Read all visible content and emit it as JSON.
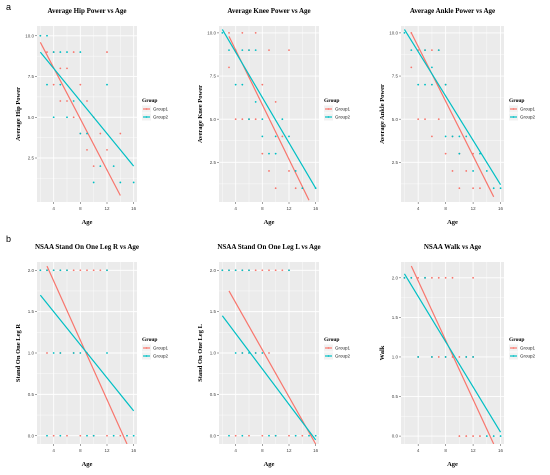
{
  "panel_labels": [
    "a",
    "b"
  ],
  "colors": {
    "group1": "#F8766D",
    "group2": "#00BFC4",
    "panel_bg": "#EBEBEB",
    "grid": "#FFFFFF"
  },
  "chart_data": [
    {
      "type": "scatter",
      "title": "Average Hip Power vs Age",
      "xlabel": "Age",
      "ylabel": "Average Hip Power",
      "xlim": [
        1.5,
        16.5
      ],
      "ylim": [
        -0.2,
        10.6
      ],
      "xticks": [
        4,
        8,
        12,
        16
      ],
      "xtick_labels": [
        "4",
        "8",
        "12",
        "16"
      ],
      "yticks": [
        2.5,
        5.0,
        7.5,
        10.0
      ],
      "ytick_labels": [
        "2.5",
        "5.0",
        "7.5",
        "10.0"
      ],
      "grid": true,
      "legend": {
        "title": "Group",
        "position": "right",
        "entries": [
          "Group1",
          "Group2"
        ]
      },
      "series": [
        {
          "name": "Group1",
          "color": "#F8766D",
          "x": [
            2,
            3,
            4,
            4,
            5,
            5,
            6,
            6,
            7,
            7,
            8,
            8,
            9,
            9,
            10,
            10,
            11,
            12,
            12,
            14
          ],
          "y": [
            10,
            9,
            9,
            7,
            8,
            6,
            8,
            6,
            9,
            5,
            7,
            4,
            6,
            3,
            5,
            2,
            4,
            3,
            9,
            4
          ],
          "fit": [
            [
              2,
              9.6
            ],
            [
              14,
              0.2
            ]
          ]
        },
        {
          "name": "Group2",
          "color": "#00BFC4",
          "x": [
            2,
            3,
            3,
            4,
            4,
            5,
            5,
            6,
            6,
            7,
            8,
            8,
            9,
            10,
            11,
            12,
            13,
            14,
            16
          ],
          "y": [
            10,
            10,
            7,
            9,
            5,
            9,
            7,
            9,
            5,
            6,
            9,
            4,
            4,
            1,
            2,
            7,
            2,
            1,
            1
          ],
          "fit": [
            [
              2,
              9.0
            ],
            [
              16,
              2.0
            ]
          ]
        }
      ]
    },
    {
      "type": "scatter",
      "title": "Average Knee Power vs Age",
      "xlabel": "Age",
      "ylabel": "Average Knee Power",
      "xlim": [
        1.5,
        16.5
      ],
      "ylim": [
        0.2,
        10.4
      ],
      "xticks": [
        4,
        8,
        12,
        16
      ],
      "xtick_labels": [
        "4",
        "8",
        "12",
        "16"
      ],
      "yticks": [
        2.5,
        5.0,
        7.5,
        10.0
      ],
      "ytick_labels": [
        "2.5",
        "5.0",
        "7.5",
        "10.0"
      ],
      "grid": true,
      "legend": {
        "title": "Group",
        "position": "right",
        "entries": [
          "Group1",
          "Group2"
        ]
      },
      "series": [
        {
          "name": "Group1",
          "color": "#F8766D",
          "x": [
            3,
            3,
            4,
            4,
            5,
            5,
            6,
            6,
            7,
            7,
            8,
            8,
            9,
            9,
            10,
            10,
            11,
            12,
            12,
            13
          ],
          "y": [
            10,
            8,
            9,
            5,
            10,
            5,
            9,
            5,
            10,
            5,
            7,
            3,
            9,
            2,
            6,
            1,
            4,
            2,
            9,
            1
          ],
          "fit": [
            [
              3,
              9.8
            ],
            [
              15,
              0.3
            ]
          ]
        },
        {
          "name": "Group2",
          "color": "#00BFC4",
          "x": [
            2,
            3,
            4,
            5,
            5,
            6,
            6,
            7,
            7,
            8,
            8,
            9,
            10,
            10,
            11,
            12,
            13,
            14,
            16
          ],
          "y": [
            10,
            9,
            7,
            9,
            7,
            9,
            5,
            9,
            6,
            4,
            5,
            3,
            3,
            4,
            5,
            4,
            2,
            1,
            1
          ],
          "fit": [
            [
              2,
              10.2
            ],
            [
              16,
              1.0
            ]
          ]
        }
      ]
    },
    {
      "type": "scatter",
      "title": "Average Ankle Power vs Age",
      "xlabel": "Age",
      "ylabel": "Average Ankle Power",
      "xlim": [
        1.5,
        16.5
      ],
      "ylim": [
        0.2,
        10.4
      ],
      "xticks": [
        4,
        8,
        12,
        16
      ],
      "xtick_labels": [
        "4",
        "8",
        "12",
        "16"
      ],
      "yticks": [
        2.5,
        5.0,
        7.5,
        10.0
      ],
      "ytick_labels": [
        "2.5",
        "5.0",
        "7.5",
        "10.0"
      ],
      "grid": true,
      "legend": {
        "title": "Group",
        "position": "right",
        "entries": [
          "Group1",
          "Group2"
        ]
      },
      "series": [
        {
          "name": "Group1",
          "color": "#F8766D",
          "x": [
            3,
            3,
            4,
            4,
            5,
            5,
            6,
            6,
            7,
            7,
            8,
            8,
            9,
            9,
            10,
            10,
            11,
            12,
            12,
            13
          ],
          "y": [
            10,
            8,
            9,
            5,
            9,
            5,
            9,
            4,
            9,
            5,
            7,
            3,
            4,
            2,
            3,
            1,
            2,
            3,
            1,
            1
          ],
          "fit": [
            [
              3,
              10.0
            ],
            [
              15,
              0.5
            ]
          ]
        },
        {
          "name": "Group2",
          "color": "#00BFC4",
          "x": [
            2,
            3,
            4,
            5,
            5,
            6,
            6,
            7,
            8,
            8,
            9,
            10,
            10,
            11,
            12,
            13,
            14,
            15,
            16
          ],
          "y": [
            10,
            9,
            7,
            9,
            7,
            8,
            7,
            9,
            4,
            7,
            4,
            4,
            3,
            4,
            2,
            3,
            2,
            1,
            1
          ],
          "fit": [
            [
              2,
              10.2
            ],
            [
              16,
              1.2
            ]
          ]
        }
      ]
    },
    {
      "type": "scatter",
      "title": "NSAA Stand On One Leg R vs Age",
      "xlabel": "Age",
      "ylabel": "Stand On One Leg R",
      "xlim": [
        1.5,
        16.5
      ],
      "ylim": [
        -0.1,
        2.1
      ],
      "xticks": [
        4,
        8,
        12,
        16
      ],
      "xtick_labels": [
        "4",
        "8",
        "12",
        "16"
      ],
      "yticks": [
        0.0,
        0.5,
        1.0,
        1.5,
        2.0
      ],
      "ytick_labels": [
        "0.0",
        "0.5",
        "1.0",
        "1.5",
        "2.0"
      ],
      "grid": true,
      "legend": {
        "title": "Group",
        "position": "right",
        "entries": [
          "Group1",
          "Group2"
        ]
      },
      "series": [
        {
          "name": "Group1",
          "color": "#F8766D",
          "x": [
            2,
            3,
            4,
            5,
            6,
            7,
            8,
            9,
            10,
            11,
            12,
            3,
            5,
            7,
            9,
            4,
            6,
            8,
            10,
            12,
            14
          ],
          "y": [
            2,
            2,
            2,
            2,
            2,
            2,
            2,
            2,
            2,
            2,
            2,
            1,
            1,
            1,
            1,
            0,
            0,
            0,
            0,
            0,
            0
          ],
          "fit": [
            [
              3,
              2.05
            ],
            [
              15,
              -0.1
            ]
          ]
        },
        {
          "name": "Group2",
          "color": "#00BFC4",
          "x": [
            2,
            3,
            4,
            5,
            6,
            12,
            4,
            5,
            7,
            8,
            12,
            3,
            5,
            9,
            10,
            13,
            15,
            16
          ],
          "y": [
            2,
            2,
            2,
            2,
            2,
            2,
            1,
            1,
            1,
            1,
            1,
            0,
            0,
            0,
            0,
            0,
            0,
            0
          ],
          "fit": [
            [
              2,
              1.7
            ],
            [
              16,
              0.3
            ]
          ]
        }
      ]
    },
    {
      "type": "scatter",
      "title": "NSAA Stand On One Leg L vs Age",
      "xlabel": "Age",
      "ylabel": "Stand On One Leg L",
      "xlim": [
        1.5,
        16.5
      ],
      "ylim": [
        -0.1,
        2.1
      ],
      "xticks": [
        4,
        8,
        12,
        16
      ],
      "xtick_labels": [
        "4",
        "8",
        "12",
        "16"
      ],
      "yticks": [
        0.0,
        0.5,
        1.0,
        1.5,
        2.0
      ],
      "ytick_labels": [
        "0.0",
        "0.5",
        "1.0",
        "1.5",
        "2.0"
      ],
      "grid": true,
      "legend": {
        "title": "Group",
        "position": "right",
        "entries": [
          "Group1",
          "Group2"
        ]
      },
      "series": [
        {
          "name": "Group1",
          "color": "#F8766D",
          "x": [
            2,
            3,
            4,
            5,
            6,
            7,
            8,
            9,
            10,
            11,
            12,
            5,
            7,
            9,
            4,
            6,
            8,
            10,
            12,
            14
          ],
          "y": [
            2,
            2,
            2,
            2,
            2,
            2,
            2,
            2,
            2,
            2,
            2,
            1,
            1,
            1,
            0,
            0,
            0,
            0,
            0,
            0
          ],
          "fit": [
            [
              3,
              1.75
            ],
            [
              16,
              -0.1
            ]
          ]
        },
        {
          "name": "Group2",
          "color": "#00BFC4",
          "x": [
            2,
            3,
            4,
            5,
            6,
            12,
            4,
            5,
            6,
            7,
            8,
            3,
            5,
            9,
            10,
            13,
            15,
            16
          ],
          "y": [
            2,
            2,
            2,
            2,
            2,
            2,
            1,
            1,
            1,
            1,
            1,
            0,
            0,
            0,
            0,
            0,
            0,
            0
          ],
          "fit": [
            [
              2,
              1.45
            ],
            [
              16,
              -0.05
            ]
          ]
        }
      ]
    },
    {
      "type": "scatter",
      "title": "NSAA Walk vs Age",
      "xlabel": "Age",
      "ylabel": "Walk",
      "xlim": [
        1.5,
        16.5
      ],
      "ylim": [
        -0.1,
        2.2
      ],
      "xticks": [
        4,
        8,
        12,
        16
      ],
      "xtick_labels": [
        "4",
        "8",
        "12",
        "16"
      ],
      "yticks": [
        0.0,
        0.5,
        1.0,
        1.5,
        2.0
      ],
      "ytick_labels": [
        "0.0",
        "0.5",
        "1.0",
        "1.5",
        "2.0"
      ],
      "grid": true,
      "legend": {
        "title": "Group",
        "position": "right",
        "entries": [
          "Group1",
          "Group2"
        ]
      },
      "series": [
        {
          "name": "Group1",
          "color": "#F8766D",
          "x": [
            2,
            3,
            4,
            5,
            6,
            7,
            8,
            9,
            12,
            4,
            6,
            7,
            8,
            9,
            10,
            11,
            12,
            10,
            11,
            12,
            13
          ],
          "y": [
            2,
            2,
            2,
            2,
            2,
            2,
            2,
            2,
            2,
            1,
            1,
            1,
            1,
            1,
            1,
            1,
            1,
            0,
            0,
            0,
            0
          ],
          "fit": [
            [
              3,
              2.15
            ],
            [
              15,
              -0.1
            ]
          ]
        },
        {
          "name": "Group2",
          "color": "#00BFC4",
          "x": [
            2,
            3,
            5,
            4,
            6,
            8,
            11,
            12,
            14,
            15,
            16
          ],
          "y": [
            2,
            2,
            2,
            1,
            1,
            1,
            1,
            1,
            0,
            0,
            0
          ],
          "fit": [
            [
              2,
              2.05
            ],
            [
              16,
              0.05
            ]
          ]
        }
      ]
    }
  ]
}
